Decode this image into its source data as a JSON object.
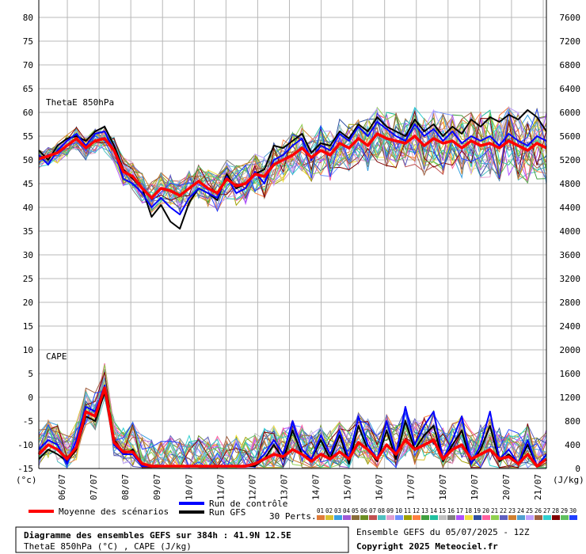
{
  "chart_data": {
    "type": "line",
    "x_dates": [
      "06/07",
      "07/07",
      "08/07",
      "09/07",
      "10/07",
      "11/07",
      "12/07",
      "13/07",
      "14/07",
      "15/07",
      "16/07",
      "17/07",
      "18/07",
      "19/07",
      "20/07",
      "21/07"
    ],
    "left_axis": {
      "unit": "(°c)",
      "ylim": [
        -15,
        80
      ],
      "ticks": [
        80,
        75,
        70,
        65,
        60,
        55,
        50,
        45,
        40,
        35,
        30,
        25,
        20,
        15,
        10,
        5,
        0,
        -5,
        -10,
        -15
      ]
    },
    "right_axis": {
      "unit": "(J/kg)",
      "ylim": [
        0,
        7600
      ],
      "ticks": [
        7600,
        7200,
        6800,
        6400,
        6000,
        5600,
        5200,
        4800,
        4400,
        4000,
        3600,
        3200,
        2800,
        2400,
        2000,
        1600,
        1200,
        800,
        400,
        0
      ]
    },
    "panels": [
      {
        "name": "ThetaE 850hPa"
      },
      {
        "name": "CAPE"
      }
    ],
    "series_meta": {
      "mean": {
        "name": "Moyenne des scénarios",
        "color": "#ff0000"
      },
      "control": {
        "name": "Run de contrôle",
        "color": "#0000ff"
      },
      "gfs": {
        "name": "Run GFS",
        "color": "#000000"
      },
      "perturbations": {
        "name": "30 Perts."
      }
    },
    "thetae_mean": [
      50.2,
      50.8,
      51.5,
      53.0,
      54.5,
      52.5,
      54.0,
      54.5,
      52.0,
      47.5,
      46.5,
      44.0,
      42.0,
      44.0,
      43.5,
      42.5,
      44.0,
      45.5,
      44.0,
      43.0,
      46.0,
      44.5,
      45.0,
      47.0,
      46.5,
      49.0,
      50.0,
      51.0,
      52.5,
      50.5,
      52.0,
      51.0,
      53.5,
      52.5,
      54.5,
      53.0,
      55.5,
      54.5,
      54.0,
      53.5,
      55.0,
      53.0,
      54.5,
      53.5,
      54.0,
      52.5,
      54.0,
      53.0,
      53.5,
      52.5,
      54.0,
      53.0,
      52.0,
      53.5,
      52.5
    ],
    "thetae_control": [
      51.0,
      49.0,
      52.0,
      54.0,
      55.5,
      53.0,
      55.5,
      56.0,
      52.0,
      46.0,
      45.0,
      43.0,
      40.0,
      42.0,
      40.0,
      38.5,
      42.0,
      44.0,
      43.0,
      42.0,
      46.5,
      43.0,
      44.0,
      47.5,
      45.0,
      50.0,
      51.0,
      53.0,
      54.5,
      50.0,
      53.0,
      52.0,
      55.5,
      54.0,
      57.0,
      55.0,
      58.0,
      56.5,
      55.0,
      54.0,
      57.5,
      55.0,
      56.5,
      54.0,
      56.0,
      53.5,
      55.0,
      54.0,
      55.0,
      53.0,
      55.5,
      54.0,
      53.0,
      55.0,
      54.0
    ],
    "thetae_gfs": [
      52.0,
      50.0,
      53.0,
      54.5,
      55.0,
      54.0,
      56.0,
      57.0,
      53.0,
      48.0,
      46.0,
      44.0,
      38.0,
      40.5,
      37.0,
      35.5,
      41.0,
      44.0,
      43.0,
      41.5,
      47.0,
      44.0,
      45.0,
      47.0,
      48.0,
      53.0,
      52.5,
      54.0,
      55.5,
      51.5,
      53.5,
      53.0,
      56.0,
      54.5,
      57.5,
      56.0,
      59.0,
      57.0,
      56.0,
      55.0,
      58.5,
      56.0,
      57.5,
      55.0,
      57.0,
      55.5,
      58.5,
      57.0,
      59.0,
      58.0,
      59.5,
      58.5,
      60.5,
      59.0,
      56.0
    ],
    "cape_mean": [
      -12.0,
      -10.0,
      -11.0,
      -13.0,
      -10.5,
      -3.0,
      -4.0,
      2.0,
      -9.5,
      -11.5,
      -11.5,
      -14.0,
      -14.5,
      -14.5,
      -14.5,
      -14.5,
      -14.5,
      -14.5,
      -14.5,
      -14.5,
      -14.5,
      -14.5,
      -14.5,
      -14.0,
      -13.0,
      -12.0,
      -12.5,
      -11.0,
      -12.0,
      -13.5,
      -12.0,
      -13.0,
      -11.5,
      -13.0,
      -9.5,
      -11.0,
      -13.0,
      -10.0,
      -12.0,
      -9.0,
      -11.0,
      -10.0,
      -9.0,
      -13.0,
      -11.0,
      -10.0,
      -13.0,
      -12.0,
      -11.0,
      -13.0,
      -12.5,
      -14.0,
      -12.0,
      -14.5,
      -13.0
    ],
    "cape_control": [
      -11.0,
      -9.0,
      -10.0,
      -14.0,
      -9.0,
      -2.0,
      -3.0,
      2.5,
      -10.0,
      -12.0,
      -12.0,
      -14.5,
      -14.5,
      -14.5,
      -14.5,
      -14.5,
      -14.5,
      -14.5,
      -14.5,
      -14.5,
      -14.5,
      -14.5,
      -14.5,
      -14.0,
      -12.0,
      -9.0,
      -12.0,
      -5.0,
      -11.0,
      -13.0,
      -8.0,
      -12.0,
      -7.0,
      -13.0,
      -4.0,
      -10.0,
      -13.0,
      -5.0,
      -12.0,
      -2.0,
      -10.0,
      -6.0,
      -3.0,
      -13.0,
      -9.0,
      -4.0,
      -14.0,
      -10.0,
      -3.0,
      -13.0,
      -11.0,
      -14.0,
      -9.0,
      -14.5,
      -12.0
    ],
    "cape_gfs": [
      -13.0,
      -11.0,
      -12.0,
      -13.5,
      -11.0,
      -4.0,
      -5.0,
      1.0,
      -9.0,
      -12.0,
      -11.0,
      -14.5,
      -14.5,
      -14.5,
      -14.5,
      -14.5,
      -14.5,
      -14.5,
      -14.5,
      -14.5,
      -14.5,
      -14.5,
      -14.5,
      -14.5,
      -13.0,
      -10.0,
      -13.0,
      -7.0,
      -12.0,
      -13.0,
      -9.0,
      -13.0,
      -8.0,
      -14.0,
      -6.0,
      -11.0,
      -13.5,
      -7.0,
      -13.0,
      -5.0,
      -11.0,
      -8.0,
      -6.0,
      -13.5,
      -10.0,
      -7.0,
      -14.0,
      -11.0,
      -6.0,
      -13.5,
      -12.0,
      -14.0,
      -10.0,
      -14.5,
      -13.0
    ]
  },
  "legend": {
    "mean_label": "Moyenne des scénarios",
    "control_label": "Run de contrôle",
    "gfs_label": "Run GFS",
    "perts_label": "30 Perts.",
    "pert_numbers": [
      "01",
      "02",
      "03",
      "04",
      "05",
      "06",
      "07",
      "08",
      "09",
      "10",
      "11",
      "12",
      "13",
      "14",
      "15",
      "16",
      "17",
      "18",
      "19",
      "20",
      "21",
      "22",
      "23",
      "24",
      "25",
      "26",
      "27",
      "28",
      "29",
      "30"
    ],
    "pert_colors": [
      "#e07b39",
      "#d9c230",
      "#39a0e0",
      "#a05ad6",
      "#8a6d3b",
      "#6b8e23",
      "#c05050",
      "#50c0c0",
      "#e0a0d0",
      "#7090ff",
      "#a0a000",
      "#ff8040",
      "#40a040",
      "#20c0a0",
      "#c0c0c0",
      "#808080",
      "#b050ff",
      "#f0e040",
      "#3050a0",
      "#ff60a0",
      "#90d050",
      "#6060c0",
      "#d08030",
      "#50a0d0",
      "#c0a0ff",
      "#a06040",
      "#30d0d0",
      "#800000",
      "#60c060",
      "#2040ff"
    ]
  },
  "info": {
    "title": "Diagramme des ensembles GEFS sur 384h : 41.9N 12.5E",
    "subtitle": "ThetaE 850hPa (°C) , CAPE (J/kg)",
    "run": "Ensemble GEFS du 05/07/2025 - 12Z",
    "copyright": "Copyright 2025 Meteociel.fr"
  }
}
